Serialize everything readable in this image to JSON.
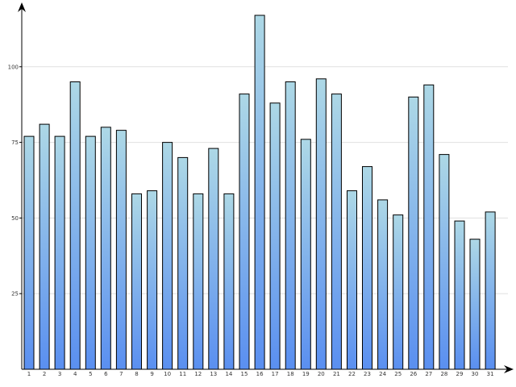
{
  "chart_data": {
    "type": "bar",
    "title": "",
    "xlabel": "",
    "ylabel": "",
    "categories": [
      "1",
      "2",
      "3",
      "4",
      "5",
      "6",
      "7",
      "8",
      "9",
      "10",
      "11",
      "12",
      "13",
      "14",
      "15",
      "16",
      "17",
      "18",
      "19",
      "20",
      "21",
      "22",
      "23",
      "24",
      "25",
      "26",
      "27",
      "28",
      "29",
      "30",
      "31"
    ],
    "values": [
      77,
      81,
      77,
      95,
      77,
      80,
      79,
      58,
      59,
      75,
      70,
      58,
      73,
      58,
      91,
      117,
      88,
      95,
      76,
      96,
      91,
      59,
      67,
      56,
      51,
      90,
      94,
      71,
      49,
      43,
      52
    ],
    "y_ticks": [
      "25",
      "50",
      "75",
      "100"
    ],
    "ylim": [
      0,
      120
    ],
    "grid": true,
    "colors": {
      "bar_top": "#add8e6",
      "bar_bottom": "#5a8ff0",
      "bar_stroke": "#000000",
      "grid": "#e0e0e0",
      "axis": "#000000"
    }
  }
}
